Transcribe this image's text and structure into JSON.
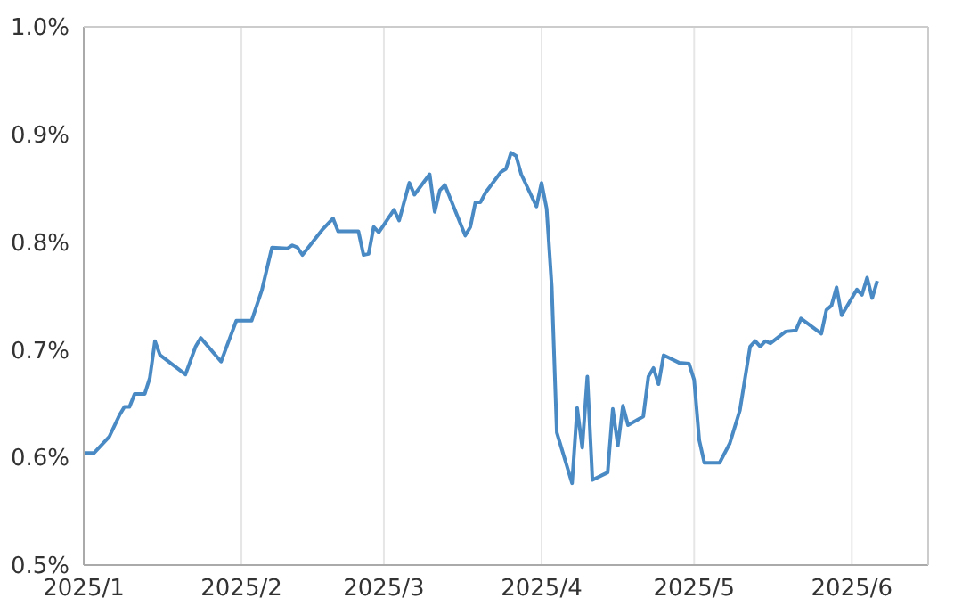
{
  "chart_data": {
    "type": "line",
    "grid": "x",
    "line_style": "solid",
    "marker": "none",
    "xlim": [
      "2025-01-01",
      "2025-06-16"
    ],
    "xticks": [
      {
        "value": "2025-01-01",
        "label": "2025/1"
      },
      {
        "value": "2025-02-01",
        "label": "2025/2"
      },
      {
        "value": "2025-03-01",
        "label": "2025/3"
      },
      {
        "value": "2025-04-01",
        "label": "2025/4"
      },
      {
        "value": "2025-05-01",
        "label": "2025/5"
      },
      {
        "value": "2025-06-01",
        "label": "2025/6"
      }
    ],
    "ylim": [
      0.5,
      1.0
    ],
    "yticks": [
      {
        "value": 0.5,
        "label": "0.5%"
      },
      {
        "value": 0.6,
        "label": "0.6%"
      },
      {
        "value": 0.7,
        "label": "0.7%"
      },
      {
        "value": 0.8,
        "label": "0.8%"
      },
      {
        "value": 0.9,
        "label": "0.9%"
      },
      {
        "value": 1.0,
        "label": "1.0%"
      }
    ],
    "x": [
      "2025-01-01",
      "2025-01-03",
      "2025-01-06",
      "2025-01-08",
      "2025-01-09",
      "2025-01-10",
      "2025-01-11",
      "2025-01-13",
      "2025-01-14",
      "2025-01-15",
      "2025-01-16",
      "2025-01-21",
      "2025-01-23",
      "2025-01-24",
      "2025-01-28",
      "2025-01-31",
      "2025-02-03",
      "2025-02-05",
      "2025-02-07",
      "2025-02-10",
      "2025-02-11",
      "2025-02-12",
      "2025-02-13",
      "2025-02-17",
      "2025-02-19",
      "2025-02-20",
      "2025-02-24",
      "2025-02-25",
      "2025-02-26",
      "2025-02-27",
      "2025-02-28",
      "2025-03-03",
      "2025-03-04",
      "2025-03-06",
      "2025-03-07",
      "2025-03-10",
      "2025-03-11",
      "2025-03-12",
      "2025-03-13",
      "2025-03-17",
      "2025-03-18",
      "2025-03-19",
      "2025-03-20",
      "2025-03-21",
      "2025-03-24",
      "2025-03-25",
      "2025-03-26",
      "2025-03-27",
      "2025-03-28",
      "2025-03-31",
      "2025-04-01",
      "2025-04-02",
      "2025-04-03",
      "2025-04-04",
      "2025-04-07",
      "2025-04-08",
      "2025-04-09",
      "2025-04-10",
      "2025-04-11",
      "2025-04-14",
      "2025-04-15",
      "2025-04-16",
      "2025-04-17",
      "2025-04-18",
      "2025-04-21",
      "2025-04-22",
      "2025-04-23",
      "2025-04-24",
      "2025-04-25",
      "2025-04-28",
      "2025-04-30",
      "2025-05-01",
      "2025-05-02",
      "2025-05-03",
      "2025-05-06",
      "2025-05-08",
      "2025-05-10",
      "2025-05-12",
      "2025-05-13",
      "2025-05-14",
      "2025-05-15",
      "2025-05-16",
      "2025-05-19",
      "2025-05-21",
      "2025-05-22",
      "2025-05-26",
      "2025-05-27",
      "2025-05-28",
      "2025-05-29",
      "2025-05-30",
      "2025-06-02",
      "2025-06-03",
      "2025-06-04",
      "2025-06-05",
      "2025-06-06"
    ],
    "series": [
      {
        "color": "#4a8ac4",
        "values": [
          0.604,
          0.604,
          0.619,
          0.639,
          0.647,
          0.647,
          0.659,
          0.659,
          0.674,
          0.708,
          0.695,
          0.677,
          0.703,
          0.711,
          0.689,
          0.727,
          0.727,
          0.755,
          0.795,
          0.794,
          0.797,
          0.795,
          0.788,
          0.812,
          0.822,
          0.81,
          0.81,
          0.788,
          0.789,
          0.814,
          0.809,
          0.83,
          0.82,
          0.855,
          0.844,
          0.863,
          0.828,
          0.848,
          0.853,
          0.806,
          0.814,
          0.837,
          0.837,
          0.846,
          0.865,
          0.868,
          0.883,
          0.88,
          0.863,
          0.833,
          0.855,
          0.831,
          0.759,
          0.623,
          0.576,
          0.646,
          0.609,
          0.675,
          0.579,
          0.586,
          0.645,
          0.611,
          0.648,
          0.63,
          0.638,
          0.675,
          0.683,
          0.668,
          0.695,
          0.688,
          0.687,
          0.672,
          0.616,
          0.595,
          0.595,
          0.613,
          0.644,
          0.703,
          0.708,
          0.703,
          0.708,
          0.706,
          0.717,
          0.718,
          0.729,
          0.715,
          0.737,
          0.741,
          0.758,
          0.732,
          0.756,
          0.751,
          0.767,
          0.748,
          0.764
        ]
      }
    ]
  }
}
